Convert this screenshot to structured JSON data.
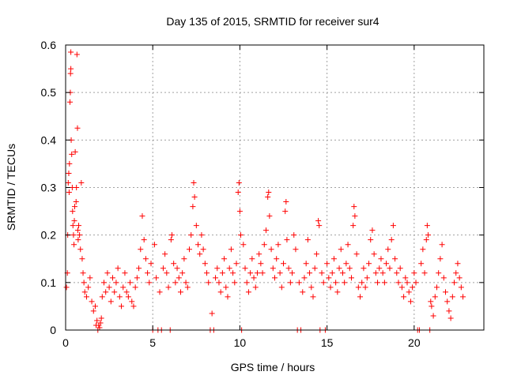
{
  "chart_data": {
    "type": "scatter",
    "title": "Day 135 of 2015, SRMTID for receiver sur4",
    "xlabel": "GPS time / hours",
    "ylabel": "SRMTID / TECUs",
    "xlim": [
      0,
      24
    ],
    "ylim": [
      0,
      0.6
    ],
    "xticks": [
      0,
      5,
      10,
      15,
      20
    ],
    "yticks": [
      0,
      0.1,
      0.2,
      0.3,
      0.4,
      0.5,
      0.6
    ],
    "xtick_labels": [
      "0",
      "5",
      "10",
      "15",
      "20"
    ],
    "ytick_labels": [
      "0",
      "0.1",
      "0.2",
      "0.3",
      "0.4",
      "0.5",
      "0.6"
    ],
    "grid": true,
    "marker": "+",
    "color": "#ff0000",
    "series": [
      {
        "name": "SRMTID",
        "points": [
          [
            0.05,
            0.09
          ],
          [
            0.1,
            0.12
          ],
          [
            0.12,
            0.2
          ],
          [
            0.15,
            0.31
          ],
          [
            0.18,
            0.33
          ],
          [
            0.2,
            0.29
          ],
          [
            0.22,
            0.35
          ],
          [
            0.25,
            0.48
          ],
          [
            0.27,
            0.5
          ],
          [
            0.28,
            0.54
          ],
          [
            0.3,
            0.55
          ],
          [
            0.3,
            0.585
          ],
          [
            0.32,
            0.4
          ],
          [
            0.35,
            0.37
          ],
          [
            0.38,
            0.3
          ],
          [
            0.4,
            0.25
          ],
          [
            0.42,
            0.22
          ],
          [
            0.45,
            0.2
          ],
          [
            0.48,
            0.18
          ],
          [
            0.5,
            0.23
          ],
          [
            0.52,
            0.26
          ],
          [
            0.55,
            0.375
          ],
          [
            0.6,
            0.27
          ],
          [
            0.62,
            0.3
          ],
          [
            0.65,
            0.58
          ],
          [
            0.68,
            0.425
          ],
          [
            0.7,
            0.21
          ],
          [
            0.72,
            0.19
          ],
          [
            0.75,
            0.22
          ],
          [
            0.8,
            0.2
          ],
          [
            0.85,
            0.17
          ],
          [
            0.9,
            0.31
          ],
          [
            0.95,
            0.15
          ],
          [
            1.0,
            0.12
          ],
          [
            1.05,
            0.1
          ],
          [
            1.1,
            0.08
          ],
          [
            1.2,
            0.07
          ],
          [
            1.3,
            0.09
          ],
          [
            1.4,
            0.11
          ],
          [
            1.5,
            0.06
          ],
          [
            1.6,
            0.04
          ],
          [
            1.7,
            0.05
          ],
          [
            1.75,
            0.01
          ],
          [
            1.8,
            0.02
          ],
          [
            1.85,
            0.0
          ],
          [
            1.9,
            0.01
          ],
          [
            1.95,
            0.005
          ],
          [
            2.0,
            0.015
          ],
          [
            2.05,
            0.025
          ],
          [
            2.1,
            0.07
          ],
          [
            2.2,
            0.1
          ],
          [
            2.3,
            0.08
          ],
          [
            2.4,
            0.12
          ],
          [
            2.5,
            0.09
          ],
          [
            2.6,
            0.06
          ],
          [
            2.7,
            0.11
          ],
          [
            2.8,
            0.08
          ],
          [
            2.9,
            0.1
          ],
          [
            3.0,
            0.13
          ],
          [
            3.1,
            0.07
          ],
          [
            3.2,
            0.05
          ],
          [
            3.3,
            0.09
          ],
          [
            3.4,
            0.12
          ],
          [
            3.5,
            0.08
          ],
          [
            3.6,
            0.07
          ],
          [
            3.7,
            0.1
          ],
          [
            3.8,
            0.06
          ],
          [
            3.9,
            0.05
          ],
          [
            4.0,
            0.09
          ],
          [
            4.1,
            0.11
          ],
          [
            4.2,
            0.13
          ],
          [
            4.3,
            0.17
          ],
          [
            4.4,
            0.24
          ],
          [
            4.5,
            0.19
          ],
          [
            4.6,
            0.15
          ],
          [
            4.7,
            0.12
          ],
          [
            4.8,
            0.1
          ],
          [
            4.9,
            0.14
          ],
          [
            5.0,
            0.0
          ],
          [
            5.1,
            0.18
          ],
          [
            5.2,
            0.11
          ],
          [
            5.3,
            0.0
          ],
          [
            5.4,
            0.08
          ],
          [
            5.5,
            0.0
          ],
          [
            5.6,
            0.13
          ],
          [
            5.7,
            0.16
          ],
          [
            5.8,
            0.12
          ],
          [
            5.9,
            0.09
          ],
          [
            6.0,
            0.0
          ],
          [
            6.05,
            0.19
          ],
          [
            6.1,
            0.2
          ],
          [
            6.2,
            0.14
          ],
          [
            6.3,
            0.1
          ],
          [
            6.4,
            0.13
          ],
          [
            6.5,
            0.11
          ],
          [
            6.6,
            0.08
          ],
          [
            6.7,
            0.12
          ],
          [
            6.8,
            0.15
          ],
          [
            6.9,
            0.1
          ],
          [
            7.0,
            0.09
          ],
          [
            7.1,
            0.17
          ],
          [
            7.2,
            0.2
          ],
          [
            7.3,
            0.26
          ],
          [
            7.35,
            0.31
          ],
          [
            7.4,
            0.28
          ],
          [
            7.5,
            0.22
          ],
          [
            7.6,
            0.18
          ],
          [
            7.7,
            0.16
          ],
          [
            7.8,
            0.2
          ],
          [
            7.9,
            0.17
          ],
          [
            8.0,
            0.14
          ],
          [
            8.1,
            0.12
          ],
          [
            8.2,
            0.1
          ],
          [
            8.3,
            0.0
          ],
          [
            8.4,
            0.035
          ],
          [
            8.5,
            0.0
          ],
          [
            8.6,
            0.11
          ],
          [
            8.7,
            0.13
          ],
          [
            8.8,
            0.1
          ],
          [
            8.9,
            0.08
          ],
          [
            9.0,
            0.12
          ],
          [
            9.1,
            0.15
          ],
          [
            9.2,
            0.09
          ],
          [
            9.3,
            0.07
          ],
          [
            9.4,
            0.13
          ],
          [
            9.5,
            0.17
          ],
          [
            9.6,
            0.12
          ],
          [
            9.7,
            0.1
          ],
          [
            9.8,
            0.14
          ],
          [
            9.9,
            0.29
          ],
          [
            9.95,
            0.31
          ],
          [
            10.0,
            0.25
          ],
          [
            10.05,
            0.2
          ],
          [
            10.1,
            0.0
          ],
          [
            10.2,
            0.18
          ],
          [
            10.3,
            0.13
          ],
          [
            10.4,
            0.1
          ],
          [
            10.5,
            0.08
          ],
          [
            10.6,
            0.12
          ],
          [
            10.7,
            0.15
          ],
          [
            10.8,
            0.11
          ],
          [
            10.9,
            0.09
          ],
          [
            11.0,
            0.12
          ],
          [
            11.1,
            0.16
          ],
          [
            11.2,
            0.14
          ],
          [
            11.3,
            0.12
          ],
          [
            11.4,
            0.18
          ],
          [
            11.5,
            0.21
          ],
          [
            11.6,
            0.28
          ],
          [
            11.65,
            0.29
          ],
          [
            11.7,
            0.24
          ],
          [
            11.8,
            0.17
          ],
          [
            11.9,
            0.13
          ],
          [
            12.0,
            0.11
          ],
          [
            12.1,
            0.15
          ],
          [
            12.2,
            0.18
          ],
          [
            12.3,
            0.12
          ],
          [
            12.4,
            0.09
          ],
          [
            12.5,
            0.14
          ],
          [
            12.6,
            0.25
          ],
          [
            12.65,
            0.27
          ],
          [
            12.7,
            0.19
          ],
          [
            12.8,
            0.13
          ],
          [
            12.9,
            0.1
          ],
          [
            13.0,
            0.12
          ],
          [
            13.1,
            0.2
          ],
          [
            13.2,
            0.17
          ],
          [
            13.3,
            0.0
          ],
          [
            13.4,
            0.1
          ],
          [
            13.5,
            0.0
          ],
          [
            13.6,
            0.08
          ],
          [
            13.7,
            0.11
          ],
          [
            13.8,
            0.14
          ],
          [
            13.9,
            0.19
          ],
          [
            14.0,
            0.12
          ],
          [
            14.1,
            0.09
          ],
          [
            14.2,
            0.07
          ],
          [
            14.3,
            0.13
          ],
          [
            14.4,
            0.16
          ],
          [
            14.5,
            0.23
          ],
          [
            14.55,
            0.22
          ],
          [
            14.6,
            0.0
          ],
          [
            14.7,
            0.12
          ],
          [
            14.8,
            0.1
          ],
          [
            14.9,
            0.0
          ],
          [
            15.0,
            0.14
          ],
          [
            15.1,
            0.11
          ],
          [
            15.2,
            0.09
          ],
          [
            15.3,
            0.12
          ],
          [
            15.4,
            0.15
          ],
          [
            15.5,
            0.1
          ],
          [
            15.6,
            0.08
          ],
          [
            15.7,
            0.13
          ],
          [
            15.8,
            0.17
          ],
          [
            15.9,
            0.12
          ],
          [
            16.0,
            0.1
          ],
          [
            16.1,
            0.14
          ],
          [
            16.2,
            0.18
          ],
          [
            16.3,
            0.13
          ],
          [
            16.4,
            0.11
          ],
          [
            16.5,
            0.22
          ],
          [
            16.55,
            0.26
          ],
          [
            16.6,
            0.24
          ],
          [
            16.7,
            0.16
          ],
          [
            16.8,
            0.09
          ],
          [
            16.9,
            0.07
          ],
          [
            17.0,
            0.1
          ],
          [
            17.1,
            0.13
          ],
          [
            17.2,
            0.09
          ],
          [
            17.3,
            0.11
          ],
          [
            17.4,
            0.14
          ],
          [
            17.5,
            0.19
          ],
          [
            17.6,
            0.21
          ],
          [
            17.7,
            0.16
          ],
          [
            17.8,
            0.12
          ],
          [
            17.9,
            0.1
          ],
          [
            18.0,
            0.13
          ],
          [
            18.1,
            0.15
          ],
          [
            18.2,
            0.12
          ],
          [
            18.3,
            0.1
          ],
          [
            18.4,
            0.14
          ],
          [
            18.5,
            0.17
          ],
          [
            18.6,
            0.13
          ],
          [
            18.7,
            0.19
          ],
          [
            18.8,
            0.22
          ],
          [
            18.9,
            0.15
          ],
          [
            19.0,
            0.12
          ],
          [
            19.1,
            0.1
          ],
          [
            19.2,
            0.13
          ],
          [
            19.3,
            0.09
          ],
          [
            19.4,
            0.07
          ],
          [
            19.5,
            0.11
          ],
          [
            19.6,
            0.1
          ],
          [
            19.7,
            0.08
          ],
          [
            19.8,
            0.06
          ],
          [
            19.9,
            0.09
          ],
          [
            20.0,
            0.12
          ],
          [
            20.1,
            0.1
          ],
          [
            20.2,
            0.0
          ],
          [
            20.3,
            0.0
          ],
          [
            20.4,
            0.14
          ],
          [
            20.5,
            0.17
          ],
          [
            20.6,
            0.12
          ],
          [
            20.7,
            0.19
          ],
          [
            20.75,
            0.22
          ],
          [
            20.8,
            0.2
          ],
          [
            20.9,
            0.0
          ],
          [
            20.95,
            0.06
          ],
          [
            21.0,
            0.05
          ],
          [
            21.1,
            0.03
          ],
          [
            21.2,
            0.07
          ],
          [
            21.3,
            0.09
          ],
          [
            21.4,
            0.12
          ],
          [
            21.5,
            0.15
          ],
          [
            21.6,
            0.18
          ],
          [
            21.7,
            0.11
          ],
          [
            21.8,
            0.08
          ],
          [
            21.9,
            0.06
          ],
          [
            22.0,
            0.04
          ],
          [
            22.1,
            0.025
          ],
          [
            22.2,
            0.07
          ],
          [
            22.3,
            0.1
          ],
          [
            22.4,
            0.12
          ],
          [
            22.5,
            0.14
          ],
          [
            22.6,
            0.11
          ],
          [
            22.7,
            0.09
          ],
          [
            22.8,
            0.07
          ]
        ]
      }
    ]
  }
}
